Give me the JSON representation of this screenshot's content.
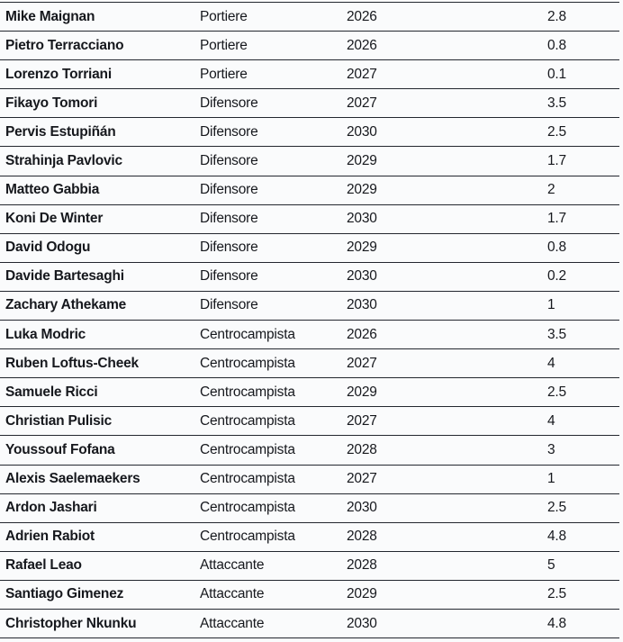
{
  "colors": {
    "text": "#16181d",
    "border": "#23272f",
    "background": "#fafbfc"
  },
  "chart_data": {
    "type": "table",
    "header_visible": false,
    "columns": [
      "name",
      "role",
      "contract_year",
      "value"
    ],
    "rows": [
      {
        "name": "Mike Maignan",
        "role": "Portiere",
        "year": "2026",
        "value": "2.8"
      },
      {
        "name": "Pietro Terracciano",
        "role": "Portiere",
        "year": "2026",
        "value": "0.8"
      },
      {
        "name": "Lorenzo Torriani",
        "role": "Portiere",
        "year": "2027",
        "value": "0.1"
      },
      {
        "name": "Fikayo Tomori",
        "role": "Difensore",
        "year": "2027",
        "value": "3.5"
      },
      {
        "name": "Pervis Estupiñán",
        "role": "Difensore",
        "year": "2030",
        "value": "2.5"
      },
      {
        "name": "Strahinja Pavlovic",
        "role": "Difensore",
        "year": "2029",
        "value": "1.7"
      },
      {
        "name": "Matteo Gabbia",
        "role": "Difensore",
        "year": "2029",
        "value": "2"
      },
      {
        "name": "Koni De Winter",
        "role": "Difensore",
        "year": "2030",
        "value": "1.7"
      },
      {
        "name": "David Odogu",
        "role": "Difensore",
        "year": "2029",
        "value": "0.8"
      },
      {
        "name": "Davide Bartesaghi",
        "role": "Difensore",
        "year": "2030",
        "value": "0.2"
      },
      {
        "name": "Zachary Athekame",
        "role": "Difensore",
        "year": "2030",
        "value": "1"
      },
      {
        "name": "Luka Modric",
        "role": "Centrocampista",
        "year": "2026",
        "value": "3.5"
      },
      {
        "name": "Ruben Loftus-Cheek",
        "role": "Centrocampista",
        "year": "2027",
        "value": "4"
      },
      {
        "name": "Samuele Ricci",
        "role": "Centrocampista",
        "year": "2029",
        "value": "2.5"
      },
      {
        "name": "Christian Pulisic",
        "role": "Centrocampista",
        "year": "2027",
        "value": "4"
      },
      {
        "name": "Youssouf Fofana",
        "role": "Centrocampista",
        "year": "2028",
        "value": "3"
      },
      {
        "name": "Alexis Saelemaekers",
        "role": "Centrocampista",
        "year": "2027",
        "value": "1"
      },
      {
        "name": "Ardon Jashari",
        "role": "Centrocampista",
        "year": "2030",
        "value": "2.5"
      },
      {
        "name": "Adrien Rabiot",
        "role": "Centrocampista",
        "year": "2028",
        "value": "4.8"
      },
      {
        "name": "Rafael Leao",
        "role": "Attaccante",
        "year": "2028",
        "value": "5"
      },
      {
        "name": "Santiago Gimenez",
        "role": "Attaccante",
        "year": "2029",
        "value": "2.5"
      },
      {
        "name": "Christopher Nkunku",
        "role": "Attaccante",
        "year": "2030",
        "value": "4.8"
      }
    ]
  }
}
